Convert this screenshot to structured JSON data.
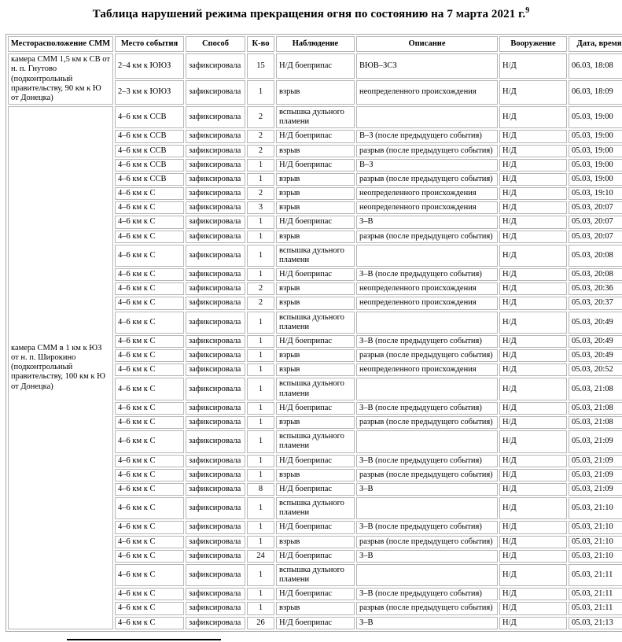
{
  "title": {
    "text": "Таблица нарушений режима прекращения огня по состоянию на 7 марта 2021 г.",
    "footnote_ref": "9"
  },
  "table": {
    "headers": [
      "Месторасположение СММ",
      "Место события",
      "Способ",
      "К-во",
      "Наблюдение",
      "Описание",
      "Вооружение",
      "Дата, время"
    ],
    "groups": [
      {
        "location": "камера СММ 1,5 км к СВ от н. п. Гнутово (подконтрольный правительству, 90 км к Ю от Донецка)",
        "rows": [
          {
            "place": "2–4 км к ЮЮЗ",
            "method": "зафиксировала",
            "count": "15",
            "observation": "Н/Д боеприпас",
            "description": "ВЮВ–ЗСЗ",
            "weapon": "Н/Д",
            "datetime": "06.03, 18:08"
          },
          {
            "place": "2–3 км к ЮЮЗ",
            "method": "зафиксировала",
            "count": "1",
            "observation": "взрыв",
            "description": "неопределенного происхождения",
            "weapon": "Н/Д",
            "datetime": "06.03, 18:09"
          }
        ]
      },
      {
        "location": "камера СММ в 1 км к ЮЗ от н. п. Широкино (подконтрольный правительству, 100 км к Ю от Донецка)",
        "rows": [
          {
            "place": "4–6 км к ССВ",
            "method": "зафиксировала",
            "count": "2",
            "observation": "вспышка дульного пламени",
            "description": "",
            "weapon": "Н/Д",
            "datetime": "05.03, 19:00"
          },
          {
            "place": "4–6 км к ССВ",
            "method": "зафиксировала",
            "count": "2",
            "observation": "Н/Д боеприпас",
            "description": "В–З (после предыдущего события)",
            "weapon": "Н/Д",
            "datetime": "05.03, 19:00"
          },
          {
            "place": "4–6 км к ССВ",
            "method": "зафиксировала",
            "count": "2",
            "observation": "взрыв",
            "description": "разрыв (после предыдущего события)",
            "weapon": "Н/Д",
            "datetime": "05.03, 19:00"
          },
          {
            "place": "4–6 км к ССВ",
            "method": "зафиксировала",
            "count": "1",
            "observation": "Н/Д боеприпас",
            "description": "В–З",
            "weapon": "Н/Д",
            "datetime": "05.03, 19:00"
          },
          {
            "place": "4–6 км к ССВ",
            "method": "зафиксировала",
            "count": "1",
            "observation": "взрыв",
            "description": "разрыв (после предыдущего события)",
            "weapon": "Н/Д",
            "datetime": "05.03, 19:00"
          },
          {
            "place": "4–6 км к С",
            "method": "зафиксировала",
            "count": "2",
            "observation": "взрыв",
            "description": "неопределенного происхождения",
            "weapon": "Н/Д",
            "datetime": "05.03, 19:10"
          },
          {
            "place": "4–6 км к С",
            "method": "зафиксировала",
            "count": "3",
            "observation": "взрыв",
            "description": "неопределенного происхождения",
            "weapon": "Н/Д",
            "datetime": "05.03, 20:07"
          },
          {
            "place": "4–6 км к С",
            "method": "зафиксировала",
            "count": "1",
            "observation": "Н/Д боеприпас",
            "description": "З–В",
            "weapon": "Н/Д",
            "datetime": "05.03, 20:07"
          },
          {
            "place": "4–6 км к С",
            "method": "зафиксировала",
            "count": "1",
            "observation": "взрыв",
            "description": "разрыв (после предыдущего события)",
            "weapon": "Н/Д",
            "datetime": "05.03, 20:07"
          },
          {
            "place": "4–6 км к С",
            "method": "зафиксировала",
            "count": "1",
            "observation": "вспышка дульного пламени",
            "description": "",
            "weapon": "Н/Д",
            "datetime": "05.03, 20:08"
          },
          {
            "place": "4–6 км к С",
            "method": "зафиксировала",
            "count": "1",
            "observation": "Н/Д боеприпас",
            "description": "З–В (после предыдущего события)",
            "weapon": "Н/Д",
            "datetime": "05.03, 20:08"
          },
          {
            "place": "4–6 км к С",
            "method": "зафиксировала",
            "count": "2",
            "observation": "взрыв",
            "description": "неопределенного происхождения",
            "weapon": "Н/Д",
            "datetime": "05.03, 20:36"
          },
          {
            "place": "4–6 км к С",
            "method": "зафиксировала",
            "count": "2",
            "observation": "взрыв",
            "description": "неопределенного происхождения",
            "weapon": "Н/Д",
            "datetime": "05.03, 20:37"
          },
          {
            "place": "4–6 км к С",
            "method": "зафиксировала",
            "count": "1",
            "observation": "вспышка дульного пламени",
            "description": "",
            "weapon": "Н/Д",
            "datetime": "05.03, 20:49"
          },
          {
            "place": "4–6 км к С",
            "method": "зафиксировала",
            "count": "1",
            "observation": "Н/Д боеприпас",
            "description": "З–В (после предыдущего события)",
            "weapon": "Н/Д",
            "datetime": "05.03, 20:49"
          },
          {
            "place": "4–6 км к С",
            "method": "зафиксировала",
            "count": "1",
            "observation": "взрыв",
            "description": "разрыв (после предыдущего события)",
            "weapon": "Н/Д",
            "datetime": "05.03, 20:49"
          },
          {
            "place": "4–6 км к С",
            "method": "зафиксировала",
            "count": "1",
            "observation": "взрыв",
            "description": "неопределенного происхождения",
            "weapon": "Н/Д",
            "datetime": "05.03, 20:52"
          },
          {
            "place": "4–6 км к С",
            "method": "зафиксировала",
            "count": "1",
            "observation": "вспышка дульного пламени",
            "description": "",
            "weapon": "Н/Д",
            "datetime": "05.03, 21:08"
          },
          {
            "place": "4–6 км к С",
            "method": "зафиксировала",
            "count": "1",
            "observation": "Н/Д боеприпас",
            "description": "З–В (после предыдущего события)",
            "weapon": "Н/Д",
            "datetime": "05.03, 21:08"
          },
          {
            "place": "4–6 км к С",
            "method": "зафиксировала",
            "count": "1",
            "observation": "взрыв",
            "description": "разрыв (после предыдущего события)",
            "weapon": "Н/Д",
            "datetime": "05.03, 21:08"
          },
          {
            "place": "4–6 км к С",
            "method": "зафиксировала",
            "count": "1",
            "observation": "вспышка дульного пламени",
            "description": "",
            "weapon": "Н/Д",
            "datetime": "05.03, 21:09"
          },
          {
            "place": "4–6 км к С",
            "method": "зафиксировала",
            "count": "1",
            "observation": "Н/Д боеприпас",
            "description": "З–В (после предыдущего события)",
            "weapon": "Н/Д",
            "datetime": "05.03, 21:09"
          },
          {
            "place": "4–6 км к С",
            "method": "зафиксировала",
            "count": "1",
            "observation": "взрыв",
            "description": "разрыв (после предыдущего события)",
            "weapon": "Н/Д",
            "datetime": "05.03, 21:09"
          },
          {
            "place": "4–6 км к С",
            "method": "зафиксировала",
            "count": "8",
            "observation": "Н/Д боеприпас",
            "description": "З–В",
            "weapon": "Н/Д",
            "datetime": "05.03, 21:09"
          },
          {
            "place": "4–6 км к С",
            "method": "зафиксировала",
            "count": "1",
            "observation": "вспышка дульного пламени",
            "description": "",
            "weapon": "Н/Д",
            "datetime": "05.03, 21:10"
          },
          {
            "place": "4–6 км к С",
            "method": "зафиксировала",
            "count": "1",
            "observation": "Н/Д боеприпас",
            "description": "З–В (после предыдущего события)",
            "weapon": "Н/Д",
            "datetime": "05.03, 21:10"
          },
          {
            "place": "4–6 км к С",
            "method": "зафиксировала",
            "count": "1",
            "observation": "взрыв",
            "description": "разрыв (после предыдущего события)",
            "weapon": "Н/Д",
            "datetime": "05.03, 21:10"
          },
          {
            "place": "4–6 км к С",
            "method": "зафиксировала",
            "count": "24",
            "observation": "Н/Д боеприпас",
            "description": "З–В",
            "weapon": "Н/Д",
            "datetime": "05.03, 21:10"
          },
          {
            "place": "4–6 км к С",
            "method": "зафиксировала",
            "count": "1",
            "observation": "вспышка дульного пламени",
            "description": "",
            "weapon": "Н/Д",
            "datetime": "05.03, 21:11"
          },
          {
            "place": "4–6 км к С",
            "method": "зафиксировала",
            "count": "1",
            "observation": "Н/Д боеприпас",
            "description": "З–В (после предыдущего события)",
            "weapon": "Н/Д",
            "datetime": "05.03, 21:11"
          },
          {
            "place": "4–6 км к С",
            "method": "зафиксировала",
            "count": "1",
            "observation": "взрыв",
            "description": "разрыв (после предыдущего события)",
            "weapon": "Н/Д",
            "datetime": "05.03, 21:11"
          },
          {
            "place": "4–6 км к С",
            "method": "зафиксировала",
            "count": "26",
            "observation": "Н/Д боеприпас",
            "description": "З–В",
            "weapon": "Н/Д",
            "datetime": "05.03, 21:13"
          }
        ]
      }
    ]
  }
}
